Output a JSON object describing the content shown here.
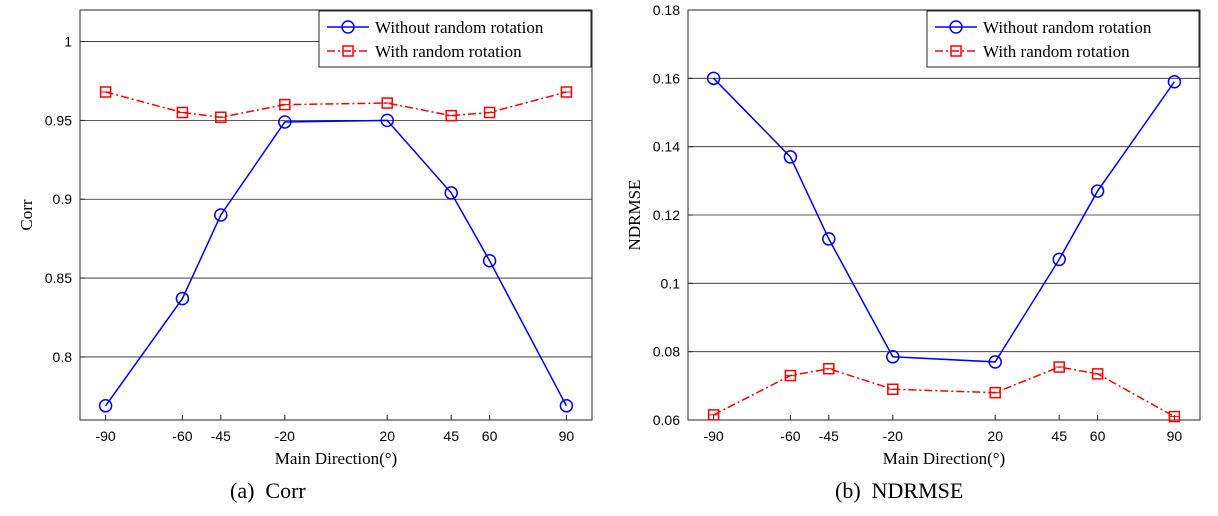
{
  "chart_data": [
    {
      "type": "line",
      "caption": "(a)  Corr",
      "xlabel": "Main Direction(°)",
      "ylabel": "Corr",
      "x": [
        -90,
        -60,
        -45,
        -20,
        20,
        45,
        60,
        90
      ],
      "xticks": [
        "-90",
        "-60",
        "-45",
        "-20",
        "20",
        "45",
        "60",
        "90"
      ],
      "ylim": [
        0.76,
        1.02
      ],
      "yticks": [
        0.8,
        0.85,
        0.9,
        0.95,
        1
      ],
      "ytick_labels": [
        "0.8",
        "0.85",
        "0.9",
        "0.95",
        "1"
      ],
      "grid": "horizontal",
      "legend": "top-right",
      "series": [
        {
          "name": "Without random rotation",
          "color": "#0000ff",
          "marker": "circle",
          "dash": "solid",
          "values": [
            0.769,
            0.837,
            0.89,
            0.949,
            0.95,
            0.904,
            0.861,
            0.769
          ]
        },
        {
          "name": "With random rotation",
          "color": "#ff0000",
          "marker": "square",
          "dash": "dashdot",
          "values": [
            0.968,
            0.955,
            0.952,
            0.96,
            0.961,
            0.953,
            0.955,
            0.968
          ]
        }
      ]
    },
    {
      "type": "line",
      "caption": "(b)  NDRMSE",
      "xlabel": "Main Direction(°)",
      "ylabel": "NDRMSE",
      "x": [
        -90,
        -60,
        -45,
        -20,
        20,
        45,
        60,
        90
      ],
      "xticks": [
        "-90",
        "-60",
        "-45",
        "-20",
        "20",
        "45",
        "60",
        "90"
      ],
      "ylim": [
        0.06,
        0.18
      ],
      "yticks": [
        0.06,
        0.08,
        0.1,
        0.12,
        0.14,
        0.16,
        0.18
      ],
      "ytick_labels": [
        "0.06",
        "0.08",
        "0.1",
        "0.12",
        "0.14",
        "0.16",
        "0.18"
      ],
      "grid": "horizontal",
      "legend": "top-right",
      "series": [
        {
          "name": "Without random rotation",
          "color": "#0000ff",
          "marker": "circle",
          "dash": "solid",
          "values": [
            0.16,
            0.137,
            0.113,
            0.0785,
            0.077,
            0.107,
            0.127,
            0.159
          ]
        },
        {
          "name": "With random rotation",
          "color": "#ff0000",
          "marker": "square",
          "dash": "dashdot",
          "values": [
            0.0615,
            0.073,
            0.075,
            0.069,
            0.068,
            0.0755,
            0.0735,
            0.061
          ]
        }
      ]
    }
  ]
}
